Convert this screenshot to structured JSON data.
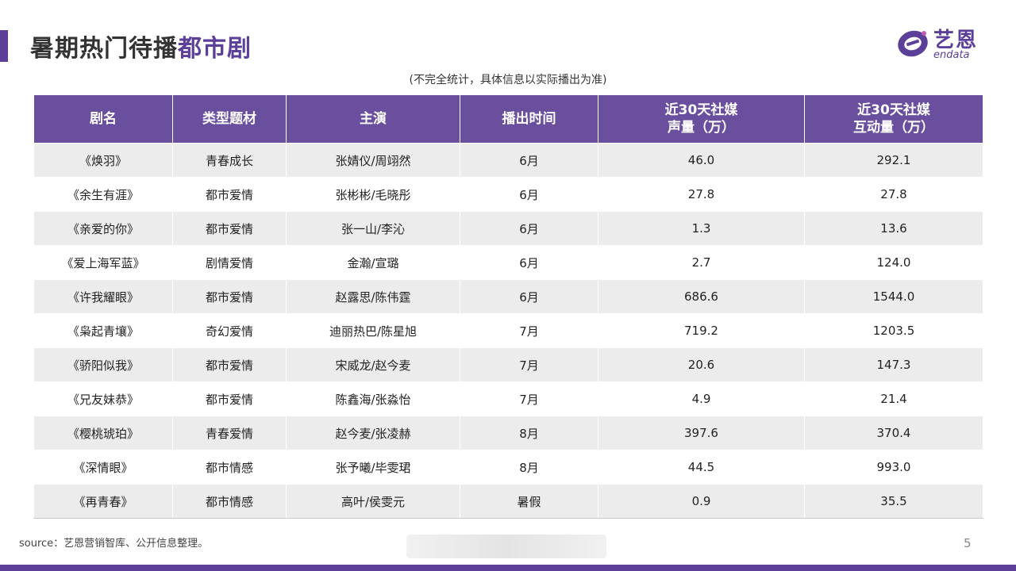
{
  "title": {
    "main": "暑期热门待播",
    "highlight": "都市剧"
  },
  "logo": {
    "cn": "艺恩",
    "en": "endata"
  },
  "subtitle": "(不完全统计，具体信息以实际播出为准)",
  "table": {
    "headers": [
      {
        "lines": [
          "剧名"
        ]
      },
      {
        "lines": [
          "类型题材"
        ]
      },
      {
        "lines": [
          "主演"
        ]
      },
      {
        "lines": [
          "播出时间"
        ]
      },
      {
        "lines": [
          "近30天社媒",
          "声量（万）"
        ]
      },
      {
        "lines": [
          "近30天社媒",
          "互动量（万）"
        ]
      }
    ],
    "rows": [
      [
        "《焕羽》",
        "青春成长",
        "张婧仪/周翊然",
        "6月",
        "46.0",
        "292.1"
      ],
      [
        "《余生有涯》",
        "都市爱情",
        "张彬彬/毛晓彤",
        "6月",
        "27.8",
        "27.8"
      ],
      [
        "《亲爱的你》",
        "都市爱情",
        "张一山/李沁",
        "6月",
        "1.3",
        "13.6"
      ],
      [
        "《爱上海军蓝》",
        "剧情爱情",
        "金瀚/宣璐",
        "6月",
        "2.7",
        "124.0"
      ],
      [
        "《许我耀眼》",
        "都市爱情",
        "赵露思/陈伟霆",
        "6月",
        "686.6",
        "1544.0"
      ],
      [
        "《枭起青壤》",
        "奇幻爱情",
        "迪丽热巴/陈星旭",
        "7月",
        "719.2",
        "1203.5"
      ],
      [
        "《骄阳似我》",
        "都市爱情",
        "宋威龙/赵今麦",
        "7月",
        "20.6",
        "147.3"
      ],
      [
        "《兄友妹恭》",
        "都市爱情",
        "陈鑫海/张淼怡",
        "7月",
        "4.9",
        "21.4"
      ],
      [
        "《樱桃琥珀》",
        "青春爱情",
        "赵今麦/张凌赫",
        "8月",
        "397.6",
        "370.4"
      ],
      [
        "《深情眼》",
        "都市情感",
        "张予曦/毕雯珺",
        "8月",
        "44.5",
        "993.0"
      ],
      [
        "《再青春》",
        "都市情感",
        "高叶/侯雯元",
        "暑假",
        "0.9",
        "35.5"
      ]
    ]
  },
  "source": "source：艺恩营销智库、公开信息整理。",
  "page_number": "5",
  "colors": {
    "accent": "#5b3f99",
    "header_bg": "#6a4f9e",
    "stripe": "#ececec"
  }
}
